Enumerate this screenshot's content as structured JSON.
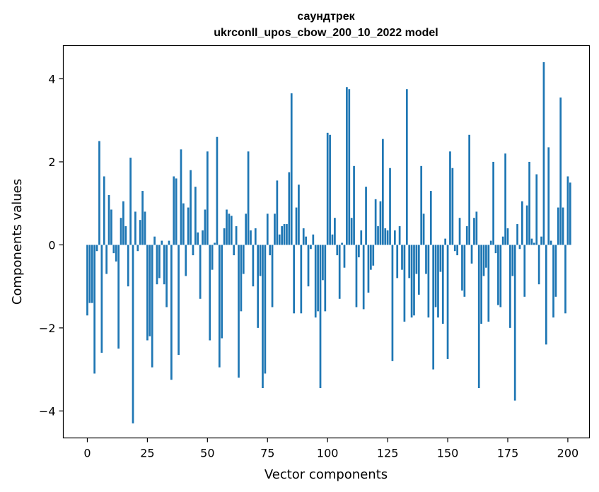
{
  "chart_data": {
    "type": "bar",
    "title_line1": "саундтрек",
    "title_line2": "ukrconll_upos_cbow_200_10_2022 model",
    "xlabel": "Vector components",
    "ylabel": "Components values",
    "xlim": [
      -10,
      209
    ],
    "ylim": [
      -4.65,
      4.8
    ],
    "xticks": [
      0,
      25,
      50,
      75,
      100,
      125,
      150,
      175,
      200
    ],
    "yticks": [
      -4,
      -2,
      0,
      2,
      4
    ],
    "ytick_labels": [
      "−4",
      "−2",
      "0",
      "2",
      "4"
    ],
    "bar_color": "#1f77b4",
    "values": [
      -1.7,
      -1.4,
      -1.4,
      -3.1,
      -0.15,
      2.5,
      -2.6,
      1.65,
      -0.7,
      1.2,
      0.85,
      -0.2,
      -0.4,
      -2.5,
      0.65,
      1.05,
      0.45,
      -1.0,
      2.1,
      -4.3,
      0.8,
      -0.15,
      0.6,
      1.3,
      0.8,
      -2.3,
      -2.2,
      -2.95,
      0.2,
      -0.95,
      -0.8,
      0.1,
      -0.95,
      -1.5,
      0.1,
      -3.25,
      1.65,
      1.6,
      -2.65,
      2.3,
      1.0,
      -0.75,
      0.9,
      1.8,
      -0.25,
      1.4,
      0.3,
      -1.3,
      0.35,
      0.85,
      2.25,
      -2.3,
      -0.6,
      0.05,
      2.6,
      -2.95,
      -2.25,
      0.4,
      0.85,
      0.75,
      0.7,
      -0.25,
      0.45,
      -3.2,
      -1.6,
      -0.7,
      0.75,
      2.25,
      0.35,
      -1.0,
      0.4,
      -2.0,
      -0.75,
      -3.45,
      -3.1,
      0.75,
      -0.25,
      -1.5,
      0.75,
      1.55,
      0.25,
      0.45,
      0.5,
      0.5,
      1.75,
      3.65,
      -1.65,
      0.9,
      1.45,
      -1.65,
      0.4,
      0.2,
      -1.0,
      -0.1,
      0.25,
      -1.75,
      -1.6,
      -3.45,
      -0.85,
      -1.6,
      2.7,
      2.65,
      0.25,
      0.65,
      -0.25,
      -1.3,
      0.05,
      -0.55,
      3.8,
      3.75,
      0.65,
      1.9,
      -1.5,
      -0.3,
      0.35,
      -1.55,
      1.4,
      -1.15,
      -0.6,
      -0.5,
      1.1,
      0.45,
      1.05,
      2.55,
      0.4,
      0.35,
      1.85,
      -2.8,
      0.35,
      -0.8,
      0.45,
      -0.6,
      -1.85,
      3.75,
      -0.8,
      -1.75,
      -1.7,
      -0.7,
      -1.2,
      1.9,
      0.75,
      -0.7,
      -1.75,
      1.3,
      -3.0,
      -1.5,
      -1.75,
      -0.65,
      -1.9,
      0.15,
      -2.75,
      2.25,
      1.85,
      -0.15,
      -0.25,
      0.65,
      -1.1,
      -1.25,
      0.45,
      2.65,
      -0.45,
      0.65,
      0.8,
      -3.45,
      -1.9,
      -0.75,
      -0.55,
      -1.85,
      0.1,
      2.0,
      -0.2,
      -1.45,
      -1.5,
      0.2,
      2.2,
      0.4,
      -2.0,
      -0.75,
      -3.75,
      0.5,
      -0.1,
      1.05,
      -1.25,
      0.95,
      2.0,
      0.15,
      0.05,
      1.7,
      -0.95,
      0.2,
      4.4,
      -2.4,
      2.35,
      0.1,
      -1.75,
      -1.25,
      0.9,
      3.55,
      0.9,
      -1.65,
      1.65,
      1.5
    ]
  }
}
